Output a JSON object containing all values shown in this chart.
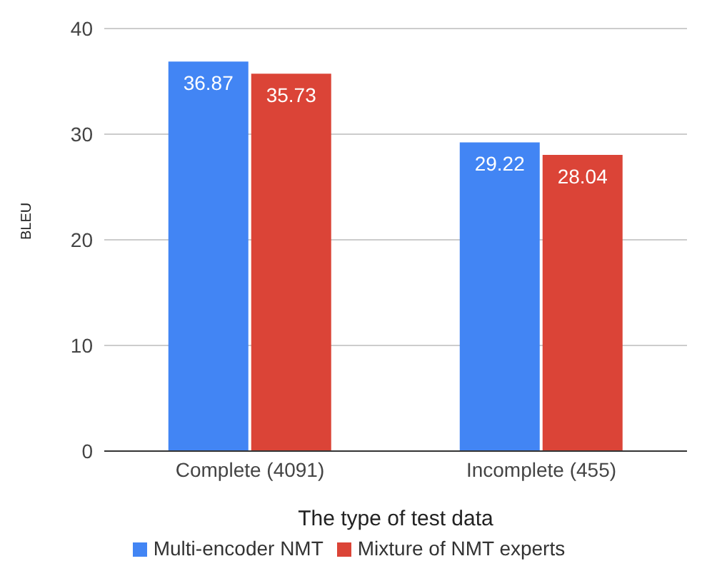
{
  "chart_data": {
    "type": "bar",
    "xlabel": "The type of test data",
    "ylabel": "BLEU",
    "categories": [
      "Complete (4091)",
      "Incomplete (455)"
    ],
    "series": [
      {
        "name": "Multi-encoder NMT",
        "color": "#4285f4",
        "values": [
          36.87,
          29.22
        ]
      },
      {
        "name": "Mixture of NMT experts",
        "color": "#db4437",
        "values": [
          35.73,
          28.04
        ]
      }
    ],
    "ylim": [
      0,
      40
    ],
    "yticks": [
      0,
      10,
      20,
      30,
      40
    ],
    "grid": "y",
    "legend": "bottom",
    "data_labels": true
  }
}
